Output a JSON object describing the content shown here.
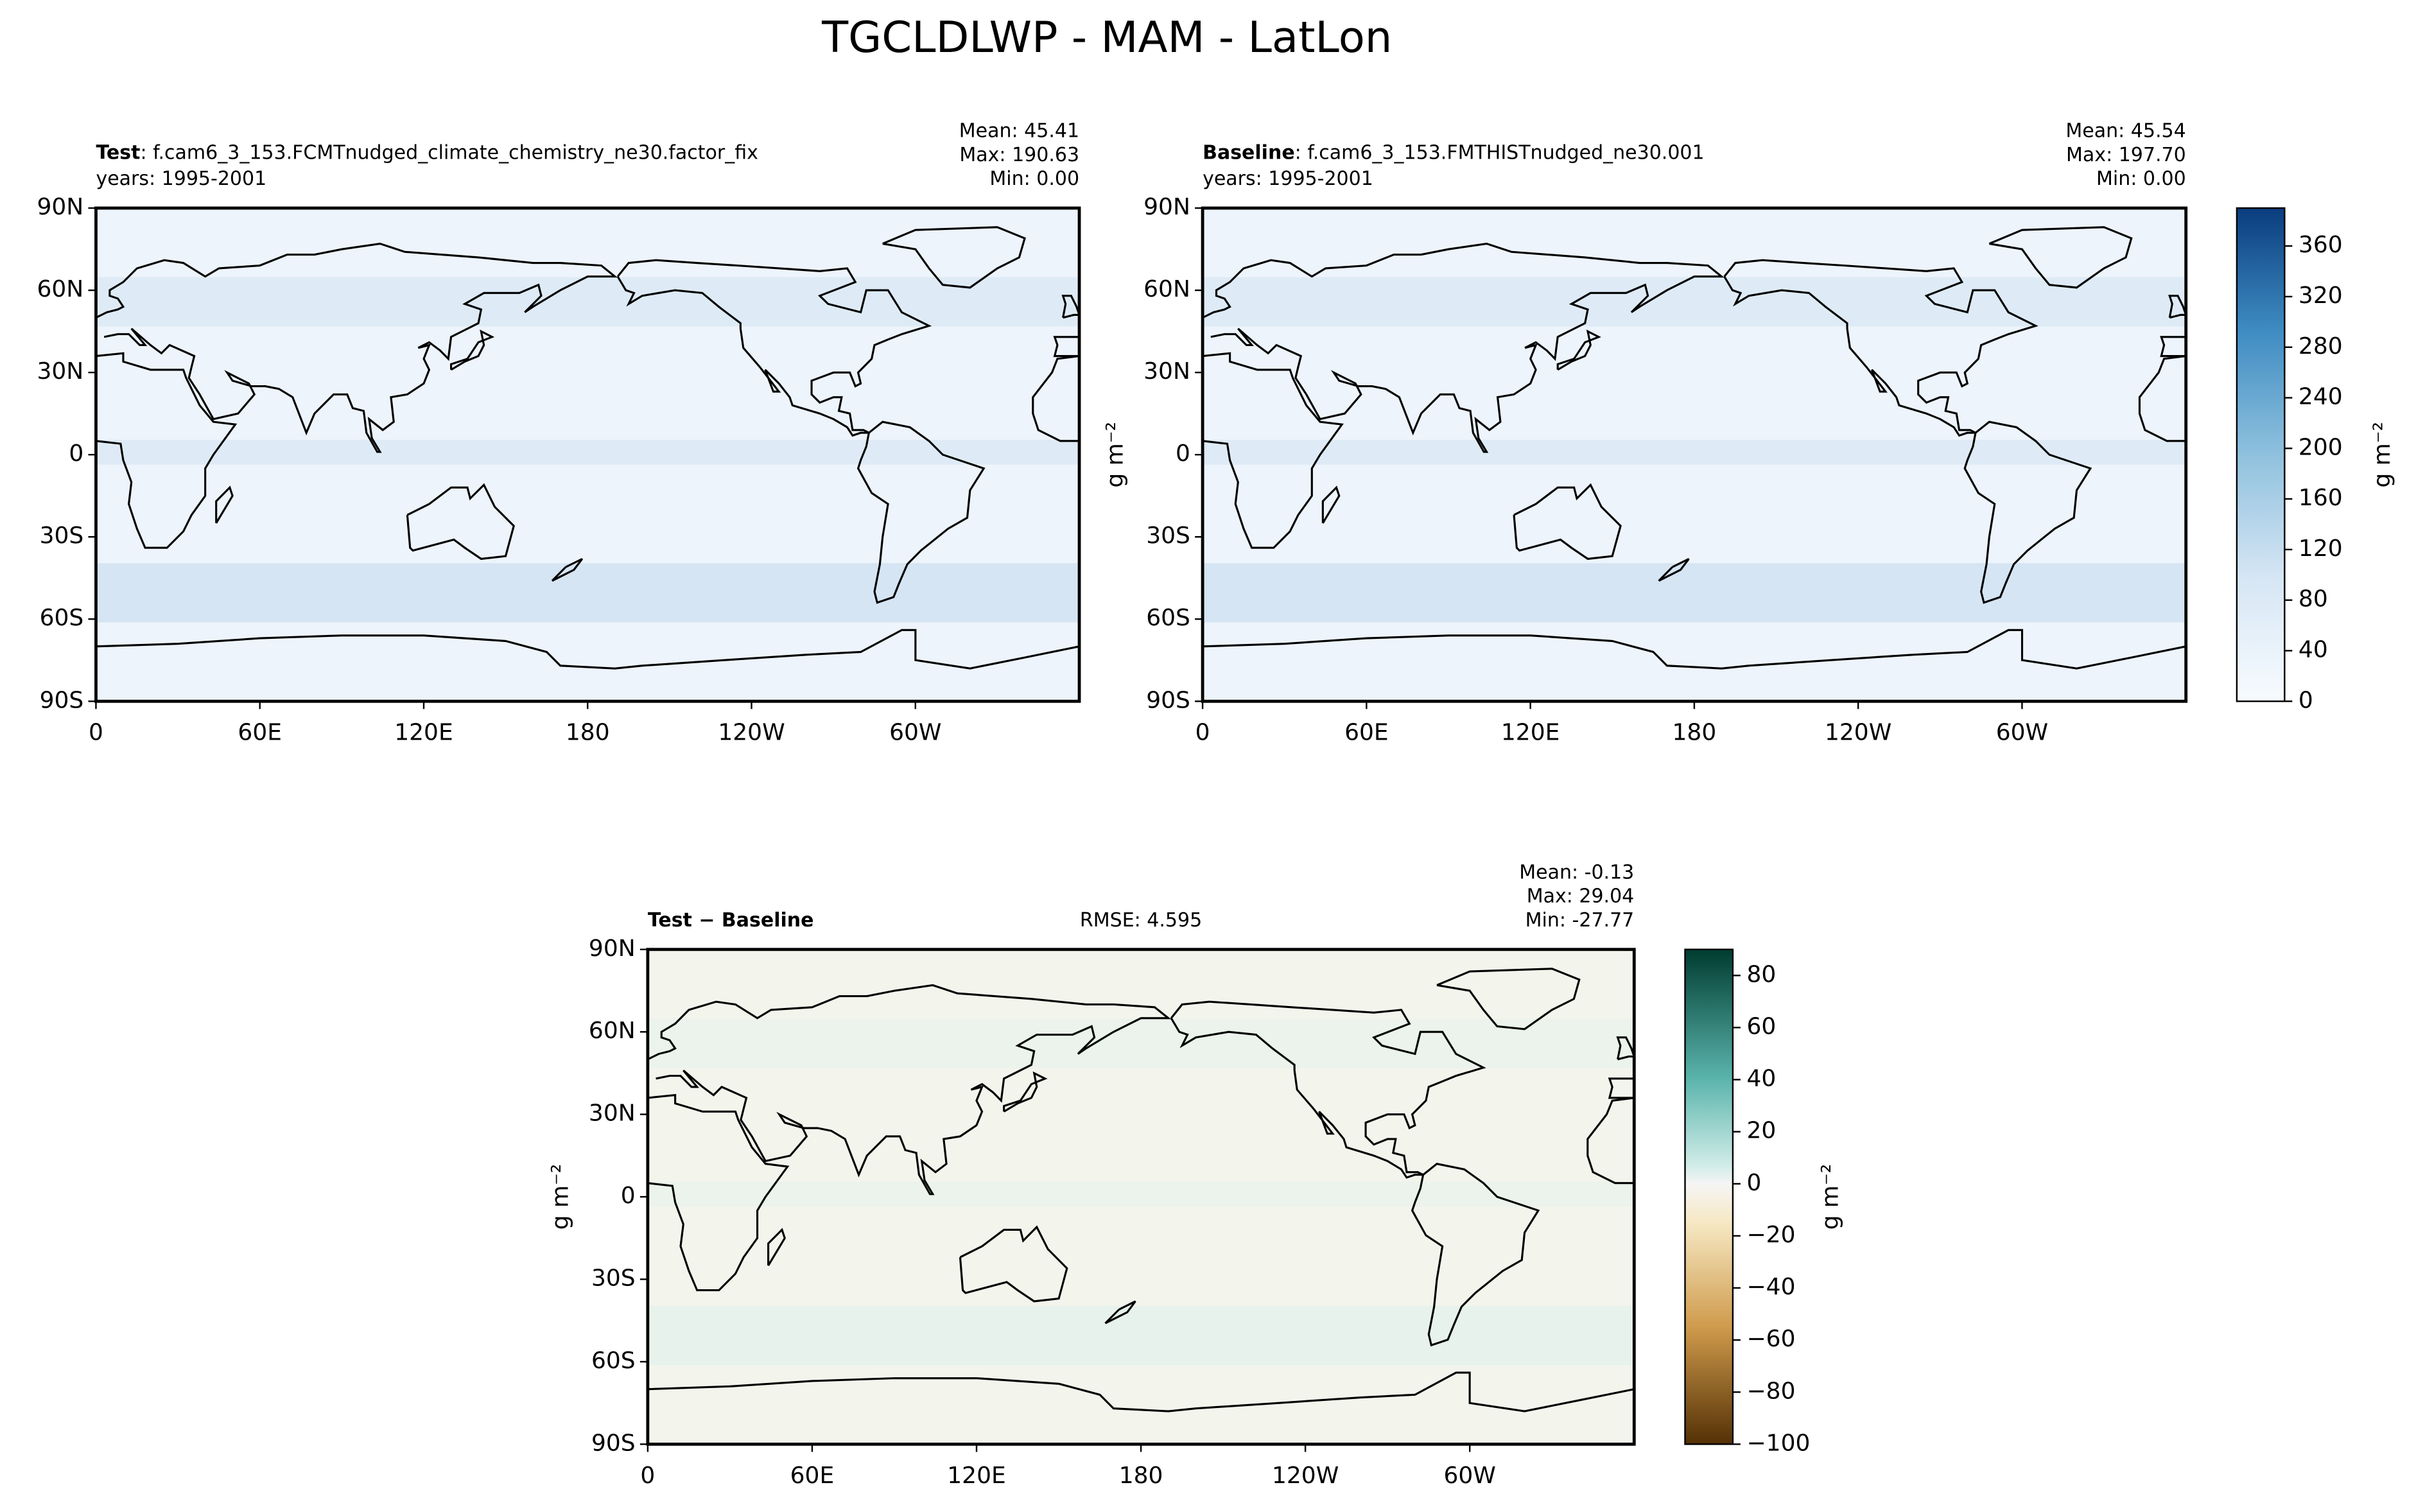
{
  "title": "TGCLDLWP - MAM - LatLon",
  "chart_data": [
    {
      "type": "map",
      "colormap": "Blues",
      "label": "Test",
      "case": ": f.cam6_3_153.FCMTnudged_climate_chemistry_ne30.factor_fix",
      "years": "years: 1995-2001",
      "stats": [
        "Mean: 45.41",
        "Max: 190.63",
        "Min:  0.00"
      ],
      "xlim": [
        0,
        360
      ],
      "xticks": [
        0,
        {
          "value": 60,
          "label": "60E"
        },
        {
          "value": 120,
          "label": "120E"
        },
        180,
        {
          "value": 240,
          "label": "120W"
        },
        {
          "value": 300,
          "label": "60W"
        }
      ],
      "ylim": [
        -90,
        90
      ],
      "yticks": [
        {
          "value": 90,
          "label": "90N"
        },
        {
          "value": 60,
          "label": "60N"
        },
        {
          "value": 30,
          "label": "30N"
        },
        0,
        {
          "value": -30,
          "label": "30S"
        },
        {
          "value": -60,
          "label": "60S"
        },
        {
          "value": -90,
          "label": "90S"
        }
      ]
    },
    {
      "type": "map",
      "colormap": "Blues",
      "label": "Baseline",
      "case": ": f.cam6_3_153.FMTHISTnudged_ne30.001",
      "years": "years: 1995-2001",
      "stats": [
        "Mean: 45.54",
        "Max: 197.70",
        "Min:  0.00"
      ],
      "ylabel": "g m⁻²",
      "xlim": [
        0,
        360
      ],
      "xticks": [
        0,
        {
          "value": 60,
          "label": "60E"
        },
        {
          "value": 120,
          "label": "120E"
        },
        180,
        {
          "value": 240,
          "label": "120W"
        },
        {
          "value": 300,
          "label": "60W"
        }
      ],
      "ylim": [
        -90,
        90
      ],
      "yticks": [
        {
          "value": 90,
          "label": "90N"
        },
        {
          "value": 60,
          "label": "60N"
        },
        {
          "value": 30,
          "label": "30N"
        },
        0,
        {
          "value": -30,
          "label": "30S"
        },
        {
          "value": -60,
          "label": "60S"
        },
        {
          "value": -90,
          "label": "90S"
        }
      ],
      "colorbar": {
        "label": "g m⁻²",
        "lim": [
          0,
          390
        ],
        "ticks": [
          0,
          40,
          80,
          120,
          160,
          200,
          240,
          280,
          320,
          360
        ]
      }
    },
    {
      "type": "map",
      "colormap": "BrBG",
      "label": "Test − Baseline",
      "rmse": "RMSE: 4.595",
      "stats": [
        "Mean: -0.13",
        "Max: 29.04",
        "Min: -27.77"
      ],
      "ylabel": "g m⁻²",
      "xlim": [
        0,
        360
      ],
      "xticks": [
        0,
        {
          "value": 60,
          "label": "60E"
        },
        {
          "value": 120,
          "label": "120E"
        },
        180,
        {
          "value": 240,
          "label": "120W"
        },
        {
          "value": 300,
          "label": "60W"
        }
      ],
      "ylim": [
        -90,
        90
      ],
      "yticks": [
        {
          "value": 90,
          "label": "90N"
        },
        {
          "value": 60,
          "label": "60N"
        },
        {
          "value": 30,
          "label": "30N"
        },
        0,
        {
          "value": -30,
          "label": "30S"
        },
        {
          "value": -60,
          "label": "60S"
        },
        {
          "value": -90,
          "label": "90S"
        }
      ],
      "colorbar": {
        "label": "g m⁻²",
        "lim": [
          -100,
          90
        ],
        "ticks": [
          {
            "value": -100,
            "label": "−100"
          },
          {
            "value": -80,
            "label": "−80"
          },
          {
            "value": -60,
            "label": "−60"
          },
          {
            "value": -40,
            "label": "−40"
          },
          {
            "value": -20,
            "label": "−20"
          },
          0,
          20,
          40,
          60,
          80
        ]
      }
    }
  ]
}
